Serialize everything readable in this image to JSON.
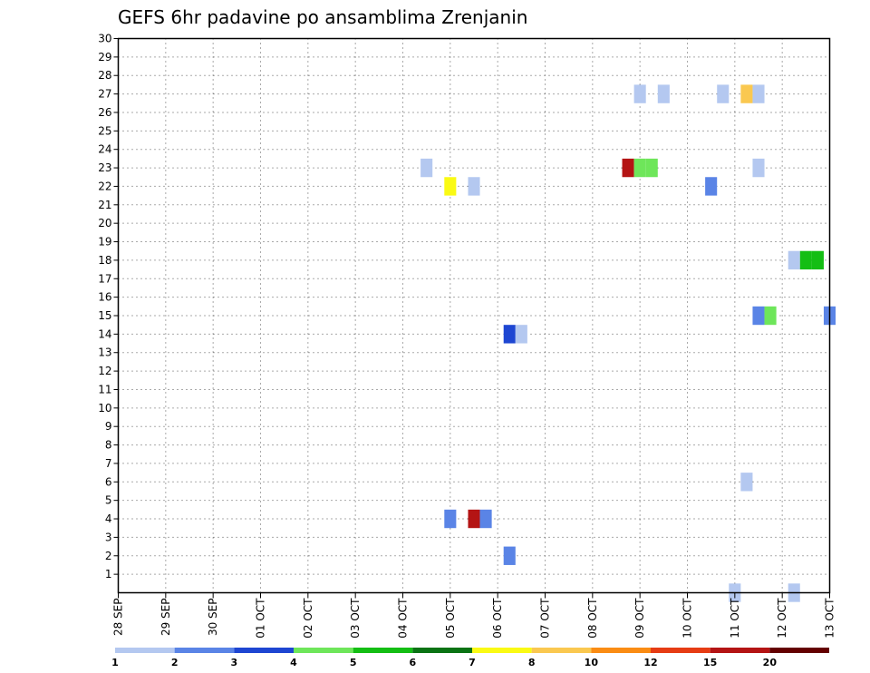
{
  "chart_data": {
    "type": "heatmap",
    "title": "GEFS 6hr padavine po ansamblima Zrenjanin",
    "y_ticks": [
      "1",
      "2",
      "3",
      "4",
      "5",
      "6",
      "7",
      "8",
      "9",
      "10",
      "11",
      "12",
      "13",
      "14",
      "15",
      "16",
      "17",
      "18",
      "19",
      "20",
      "21",
      "22",
      "23",
      "24",
      "25",
      "26",
      "27",
      "28",
      "29",
      "30"
    ],
    "x_ticks": [
      "28 SEP",
      "29 SEP",
      "30 SEP",
      "01 OCT",
      "02 OCT",
      "03 OCT",
      "04 OCT",
      "05 OCT",
      "06 OCT",
      "07 OCT",
      "08 OCT",
      "09 OCT",
      "10 OCT",
      "11 OCT",
      "12 OCT",
      "13 OCT"
    ],
    "xlim": [
      0,
      60
    ],
    "ylim": [
      0,
      30
    ],
    "grid": true,
    "legend": {
      "position": "bottom",
      "labels": [
        "1",
        "2",
        "3",
        "4",
        "5",
        "6",
        "7",
        "8",
        "10",
        "12",
        "15",
        "20"
      ],
      "colors": [
        "#b4c8f0",
        "#5a84e6",
        "#1e46d2",
        "#6ee65a",
        "#14be14",
        "#0a7314",
        "#fafa14",
        "#fac850",
        "#fa8c14",
        "#e63c14",
        "#b41414",
        "#640000"
      ]
    },
    "color_scale": {
      "b1": "#b4c8f0",
      "b2": "#5a84e6",
      "b3": "#1e46d2",
      "b4": "#6ee65a",
      "b5": "#14be14",
      "b7": "#fafa14",
      "b8": "#fac850",
      "b15": "#b41414"
    },
    "cells": [
      {
        "member": 27,
        "step": 44,
        "color": "#b4c8f0"
      },
      {
        "member": 27,
        "step": 46,
        "color": "#b4c8f0"
      },
      {
        "member": 27,
        "step": 51,
        "color": "#b4c8f0"
      },
      {
        "member": 27,
        "step": 53,
        "color": "#fac850"
      },
      {
        "member": 27,
        "step": 54,
        "color": "#b4c8f0"
      },
      {
        "member": 23,
        "step": 26,
        "color": "#b4c8f0"
      },
      {
        "member": 23,
        "step": 43,
        "color": "#b41414"
      },
      {
        "member": 23,
        "step": 44,
        "color": "#6ee65a"
      },
      {
        "member": 23,
        "step": 45,
        "color": "#6ee65a"
      },
      {
        "member": 23,
        "step": 54,
        "color": "#b4c8f0"
      },
      {
        "member": 22,
        "step": 28,
        "color": "#fafa14"
      },
      {
        "member": 22,
        "step": 30,
        "color": "#b4c8f0"
      },
      {
        "member": 22,
        "step": 50,
        "color": "#5a84e6"
      },
      {
        "member": 18,
        "step": 57,
        "color": "#b4c8f0"
      },
      {
        "member": 18,
        "step": 58,
        "color": "#14be14"
      },
      {
        "member": 18,
        "step": 59,
        "color": "#14be14"
      },
      {
        "member": 15,
        "step": 54,
        "color": "#5a84e6"
      },
      {
        "member": 15,
        "step": 55,
        "color": "#6ee65a"
      },
      {
        "member": 15,
        "step": 60,
        "color": "#5a84e6"
      },
      {
        "member": 14,
        "step": 33,
        "color": "#1e46d2"
      },
      {
        "member": 14,
        "step": 34,
        "color": "#b4c8f0"
      },
      {
        "member": 6,
        "step": 53,
        "color": "#b4c8f0"
      },
      {
        "member": 4,
        "step": 28,
        "color": "#5a84e6"
      },
      {
        "member": 4,
        "step": 30,
        "color": "#b41414"
      },
      {
        "member": 4,
        "step": 31,
        "color": "#5a84e6"
      },
      {
        "member": 2,
        "step": 33,
        "color": "#5a84e6"
      },
      {
        "member": 0,
        "step": 52,
        "color": "#b4c8f0"
      },
      {
        "member": 0,
        "step": 57,
        "color": "#b4c8f0"
      }
    ]
  }
}
